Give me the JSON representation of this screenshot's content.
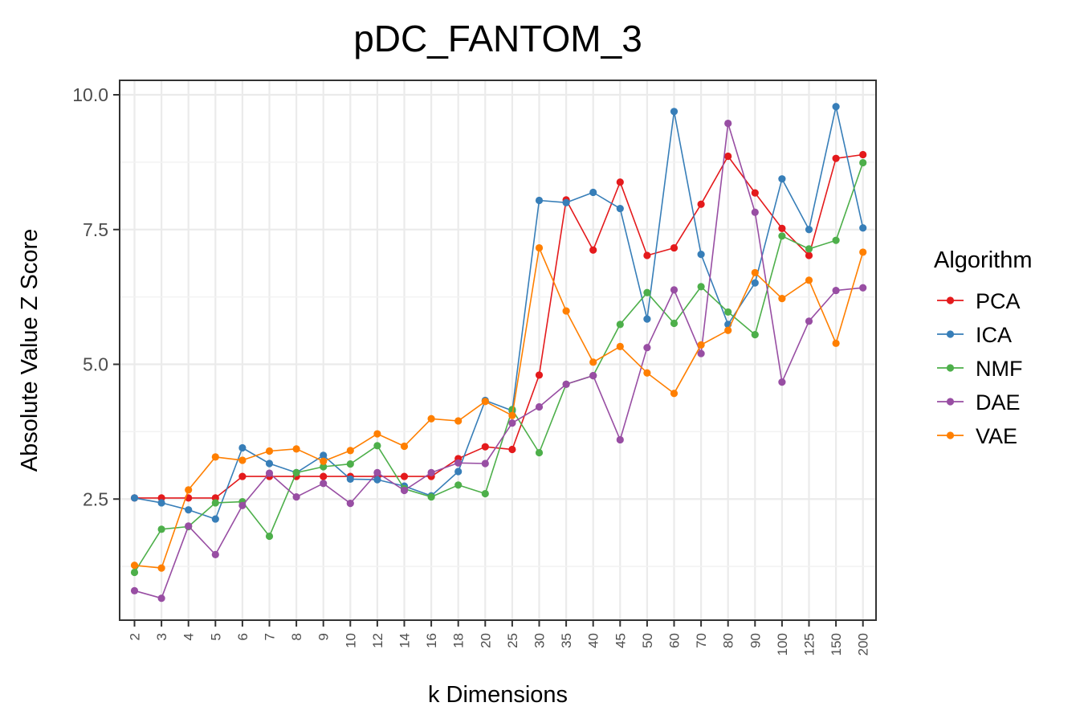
{
  "chart_data": {
    "type": "line",
    "title": "pDC_FANTOM_3",
    "xlabel": "k Dimensions",
    "ylabel": "Absolute Value Z Score",
    "categories": [
      "2",
      "3",
      "4",
      "5",
      "6",
      "7",
      "8",
      "9",
      "10",
      "12",
      "14",
      "16",
      "18",
      "20",
      "25",
      "30",
      "35",
      "40",
      "45",
      "50",
      "60",
      "70",
      "80",
      "90",
      "100",
      "125",
      "150",
      "200"
    ],
    "ylim": [
      0.4,
      10.5
    ],
    "yticks": [
      2.5,
      5.0,
      7.5,
      10.0
    ],
    "ytick_labels": [
      "2.5",
      "5.0",
      "7.5",
      "10.0"
    ],
    "grid": true,
    "legend": {
      "title": "Algorithm",
      "position": "right"
    },
    "series": [
      {
        "name": "PCA",
        "color": "#e41a1c",
        "values": [
          2.52,
          2.52,
          2.52,
          2.52,
          2.92,
          2.92,
          2.92,
          2.92,
          2.92,
          2.92,
          2.92,
          2.92,
          3.25,
          3.47,
          3.42,
          4.8,
          8.05,
          7.12,
          8.38,
          7.02,
          7.16,
          7.97,
          8.86,
          8.18,
          7.52,
          7.02,
          8.82,
          8.89
        ]
      },
      {
        "name": "ICA",
        "color": "#377eb8",
        "values": [
          2.52,
          2.43,
          2.3,
          2.13,
          3.45,
          3.16,
          2.99,
          3.31,
          2.87,
          2.86,
          2.74,
          2.56,
          3.01,
          4.33,
          4.14,
          8.04,
          8.0,
          8.19,
          7.89,
          5.84,
          9.69,
          7.04,
          5.74,
          6.51,
          8.44,
          7.5,
          9.78,
          7.53
        ]
      },
      {
        "name": "NMF",
        "color": "#4daf4a",
        "values": [
          1.14,
          1.94,
          1.99,
          2.43,
          2.45,
          1.81,
          2.99,
          3.1,
          3.15,
          3.49,
          2.69,
          2.54,
          2.76,
          2.6,
          4.16,
          3.36,
          4.63,
          4.79,
          5.74,
          6.33,
          5.76,
          6.44,
          5.97,
          5.55,
          7.38,
          7.14,
          7.3,
          8.74
        ]
      },
      {
        "name": "DAE",
        "color": "#984ea3",
        "values": [
          0.8,
          0.66,
          2.0,
          1.47,
          2.38,
          2.98,
          2.54,
          2.79,
          2.42,
          2.99,
          2.66,
          2.99,
          3.17,
          3.16,
          3.91,
          4.21,
          4.63,
          4.79,
          3.6,
          5.31,
          6.38,
          5.2,
          9.47,
          7.82,
          4.67,
          5.8,
          6.37,
          6.42
        ]
      },
      {
        "name": "VAE",
        "color": "#ff7f00",
        "values": [
          1.27,
          1.22,
          2.67,
          3.28,
          3.22,
          3.39,
          3.43,
          3.2,
          3.4,
          3.71,
          3.48,
          3.99,
          3.95,
          4.31,
          4.05,
          7.16,
          5.99,
          5.04,
          5.33,
          4.84,
          4.46,
          5.36,
          5.63,
          6.7,
          6.22,
          6.56,
          5.39,
          7.08
        ]
      }
    ]
  }
}
